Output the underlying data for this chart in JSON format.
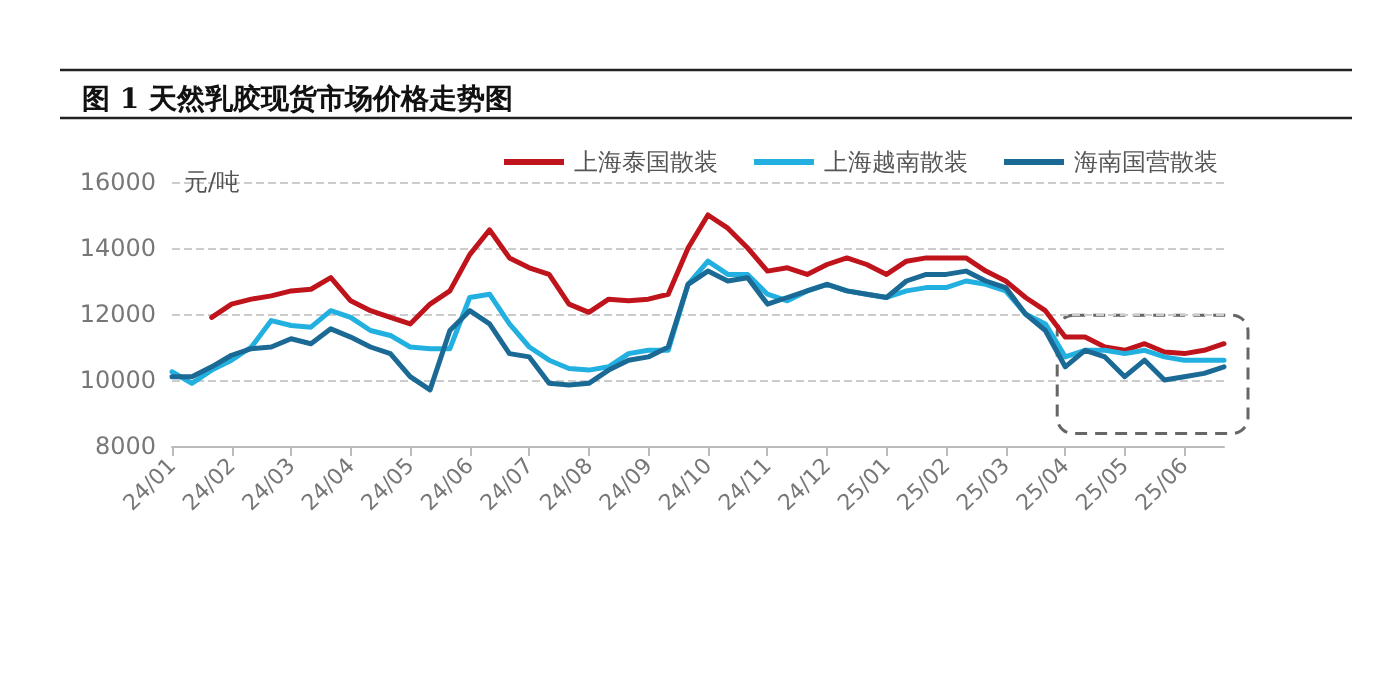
{
  "chart_data": {
    "type": "line",
    "title": "图 1 天然乳胶现货市场价格走势图",
    "ylabel": "元/吨",
    "categories": [
      "24/01",
      null,
      null,
      "24/02",
      null,
      null,
      "24/03",
      null,
      null,
      "24/04",
      null,
      null,
      "24/05",
      null,
      null,
      "24/06",
      null,
      null,
      "24/07",
      null,
      null,
      "24/08",
      null,
      null,
      "24/09",
      null,
      null,
      "24/10",
      null,
      null,
      "24/11",
      null,
      null,
      "24/12",
      null,
      null,
      "25/01",
      null,
      null,
      "25/02",
      null,
      null,
      "25/03",
      null,
      null,
      "25/04",
      null,
      null,
      "25/05",
      null,
      null,
      "25/06",
      null,
      null
    ],
    "series": [
      {
        "name": "上海泰国散装",
        "color": "#c0141c",
        "values": [
          null,
          null,
          11900,
          12300,
          12450,
          12550,
          12700,
          12750,
          13100,
          12400,
          12100,
          11900,
          11700,
          12300,
          12700,
          13800,
          14550,
          13700,
          13400,
          13200,
          12300,
          12050,
          12450,
          12400,
          12450,
          12600,
          14000,
          15000,
          14600,
          14000,
          13300,
          13400,
          13200,
          13500,
          13700,
          13500,
          13200,
          13600,
          13700,
          13700,
          13700,
          13300,
          13000,
          12500,
          12100,
          11300,
          11300,
          11000,
          10900,
          11100,
          10850,
          10800,
          10900,
          11100
        ]
      },
      {
        "name": "上海越南散装",
        "color": "#22b0e0",
        "values": [
          10250,
          9900,
          10300,
          10600,
          11000,
          11800,
          11650,
          11600,
          12100,
          11900,
          11500,
          11350,
          11000,
          10950,
          10950,
          12500,
          12600,
          11700,
          11000,
          10600,
          10350,
          10300,
          10400,
          10800,
          10900,
          10900,
          12900,
          13600,
          13200,
          13200,
          12600,
          12400,
          12700,
          12900,
          12700,
          12600,
          12500,
          12700,
          12800,
          12800,
          13000,
          12900,
          12700,
          12000,
          11700,
          10700,
          10900,
          10900,
          10800,
          10900,
          10700,
          10600,
          10600,
          10600
        ]
      },
      {
        "name": "海南国营散装",
        "color": "#1b6a96",
        "values": [
          10100,
          10100,
          10400,
          10750,
          10950,
          11000,
          11250,
          11100,
          11550,
          11300,
          11000,
          10800,
          10100,
          9700,
          11500,
          12100,
          11700,
          10800,
          10700,
          9900,
          9850,
          9900,
          10300,
          10600,
          10700,
          11000,
          12900,
          13300,
          13000,
          13100,
          12300,
          12500,
          12700,
          12900,
          12700,
          12600,
          12500,
          13000,
          13200,
          13200,
          13300,
          13000,
          12800,
          12000,
          11500,
          10400,
          10900,
          10700,
          10100,
          10600,
          10000,
          10100,
          10200,
          10400
        ]
      }
    ],
    "ylim": [
      8000,
      16000
    ],
    "yticks": [
      8000,
      10000,
      12000,
      14000,
      16000
    ],
    "grid": "y",
    "legend": "top right",
    "marker": "none",
    "line_style": "solid"
  }
}
